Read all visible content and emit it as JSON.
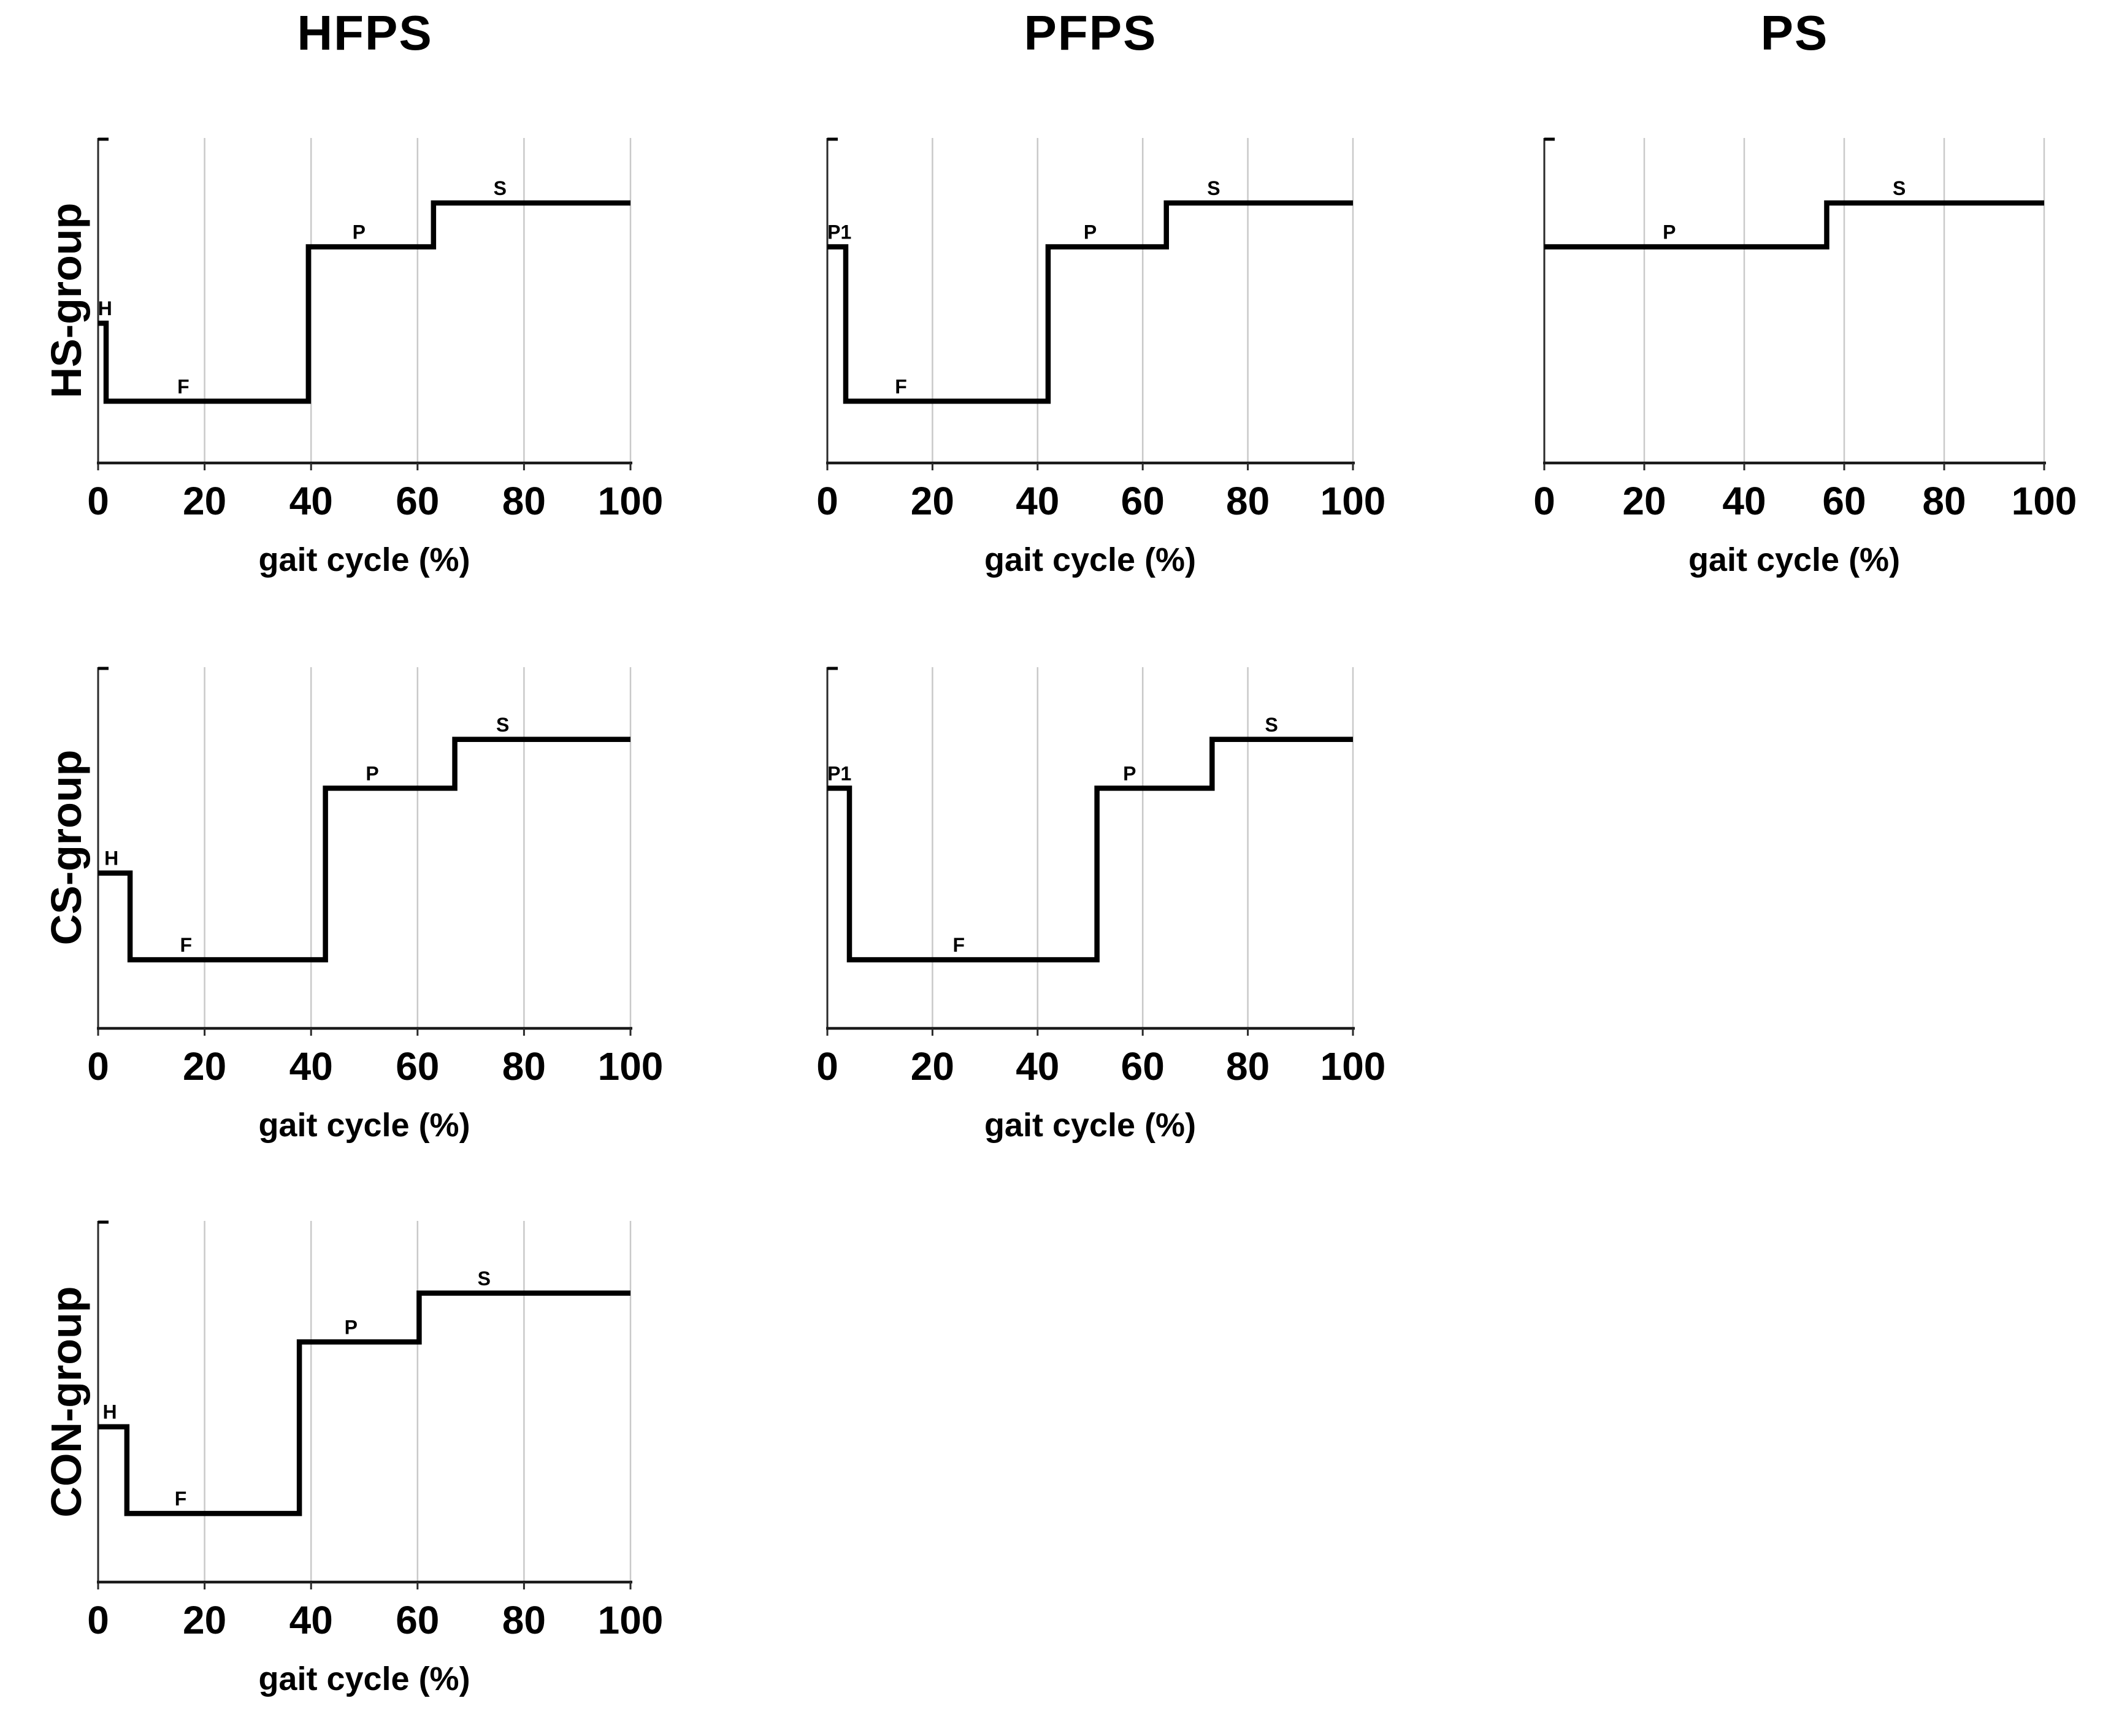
{
  "figure": {
    "column_titles": [
      "HFPS",
      "PFPS",
      "PS"
    ],
    "row_labels": [
      "HS-group",
      "CS-group",
      "CON-group"
    ],
    "xlabel": "gait cycle (%)",
    "x_ticks": [
      0,
      20,
      40,
      60,
      80,
      100
    ],
    "colors": {
      "step_line": "#000000",
      "axis": "#1a1a1a",
      "gridline": "#c9c9c9",
      "text": "#000000",
      "background": "#ffffff"
    }
  },
  "levels": {
    "F": 0.19,
    "H": 0.43,
    "P": 0.665,
    "P1": 0.665,
    "S": 0.8
  },
  "chart_data": [
    {
      "type": "step",
      "group": "HS-group",
      "condition": "HFPS",
      "xlabel": "gait cycle (%)",
      "x_ticks": [
        0,
        20,
        40,
        60,
        80,
        100
      ],
      "xlim": [
        0,
        100
      ],
      "gridlines": [
        20,
        40,
        60,
        80,
        100
      ],
      "grid_row": 0,
      "grid_col": 0,
      "segments": [
        {
          "phase": "H",
          "start": 0,
          "end": 1.5,
          "label_x": 1.3
        },
        {
          "phase": "F",
          "start": 1.5,
          "end": 39.5,
          "label_x": 16
        },
        {
          "phase": "P",
          "start": 39.5,
          "end": 63,
          "label_x": 49
        },
        {
          "phase": "S",
          "start": 63,
          "end": 100,
          "label_x": 75.5
        }
      ]
    },
    {
      "type": "step",
      "group": "HS-group",
      "condition": "PFPS",
      "xlabel": "gait cycle (%)",
      "x_ticks": [
        0,
        20,
        40,
        60,
        80,
        100
      ],
      "xlim": [
        0,
        100
      ],
      "gridlines": [
        20,
        40,
        60,
        80,
        100
      ],
      "grid_row": 0,
      "grid_col": 1,
      "segments": [
        {
          "phase": "P1",
          "start": 0,
          "end": 3.5,
          "label_x": 2.3
        },
        {
          "phase": "F",
          "start": 3.5,
          "end": 42,
          "label_x": 14
        },
        {
          "phase": "P",
          "start": 42,
          "end": 64.5,
          "label_x": 50
        },
        {
          "phase": "S",
          "start": 64.5,
          "end": 100,
          "label_x": 73.5
        }
      ]
    },
    {
      "type": "step",
      "group": "HS-group",
      "condition": "PS",
      "xlabel": "gait cycle (%)",
      "x_ticks": [
        0,
        20,
        40,
        60,
        80,
        100
      ],
      "xlim": [
        0,
        100
      ],
      "gridlines": [
        20,
        40,
        60,
        80,
        100
      ],
      "grid_row": 0,
      "grid_col": 2,
      "segments": [
        {
          "phase": "P",
          "start": 0,
          "end": 56.5,
          "label_x": 25
        },
        {
          "phase": "S",
          "start": 56.5,
          "end": 100,
          "label_x": 71
        }
      ]
    },
    {
      "type": "step",
      "group": "CS-group",
      "condition": "HFPS",
      "xlabel": "gait cycle (%)",
      "x_ticks": [
        0,
        20,
        40,
        60,
        80,
        100
      ],
      "xlim": [
        0,
        100
      ],
      "gridlines": [
        20,
        40,
        60,
        80,
        100
      ],
      "grid_row": 1,
      "grid_col": 0,
      "segments": [
        {
          "phase": "H",
          "start": 0,
          "end": 6,
          "label_x": 2.5
        },
        {
          "phase": "F",
          "start": 6,
          "end": 42.7,
          "label_x": 16.5
        },
        {
          "phase": "P",
          "start": 42.7,
          "end": 67,
          "label_x": 51.5
        },
        {
          "phase": "S",
          "start": 67,
          "end": 100,
          "label_x": 76
        }
      ]
    },
    {
      "type": "step",
      "group": "CS-group",
      "condition": "PFPS",
      "xlabel": "gait cycle (%)",
      "x_ticks": [
        0,
        20,
        40,
        60,
        80,
        100
      ],
      "xlim": [
        0,
        100
      ],
      "gridlines": [
        20,
        40,
        60,
        80,
        100
      ],
      "grid_row": 1,
      "grid_col": 1,
      "segments": [
        {
          "phase": "P1",
          "start": 0,
          "end": 4.2,
          "label_x": 2.3
        },
        {
          "phase": "F",
          "start": 4.2,
          "end": 51.3,
          "label_x": 25
        },
        {
          "phase": "P",
          "start": 51.3,
          "end": 73.2,
          "label_x": 57.5
        },
        {
          "phase": "S",
          "start": 73.2,
          "end": 100,
          "label_x": 84.5
        }
      ]
    },
    {
      "type": "step",
      "group": "CON-group",
      "condition": "HFPS",
      "xlabel": "gait cycle (%)",
      "x_ticks": [
        0,
        20,
        40,
        60,
        80,
        100
      ],
      "xlim": [
        0,
        100
      ],
      "gridlines": [
        20,
        40,
        60,
        80,
        100
      ],
      "grid_row": 2,
      "grid_col": 0,
      "segments": [
        {
          "phase": "H",
          "start": 0,
          "end": 5.4,
          "label_x": 2.2
        },
        {
          "phase": "F",
          "start": 5.4,
          "end": 37.8,
          "label_x": 15.5
        },
        {
          "phase": "P",
          "start": 37.8,
          "end": 60.3,
          "label_x": 47.5
        },
        {
          "phase": "S",
          "start": 60.3,
          "end": 100,
          "label_x": 72.5
        }
      ]
    }
  ]
}
